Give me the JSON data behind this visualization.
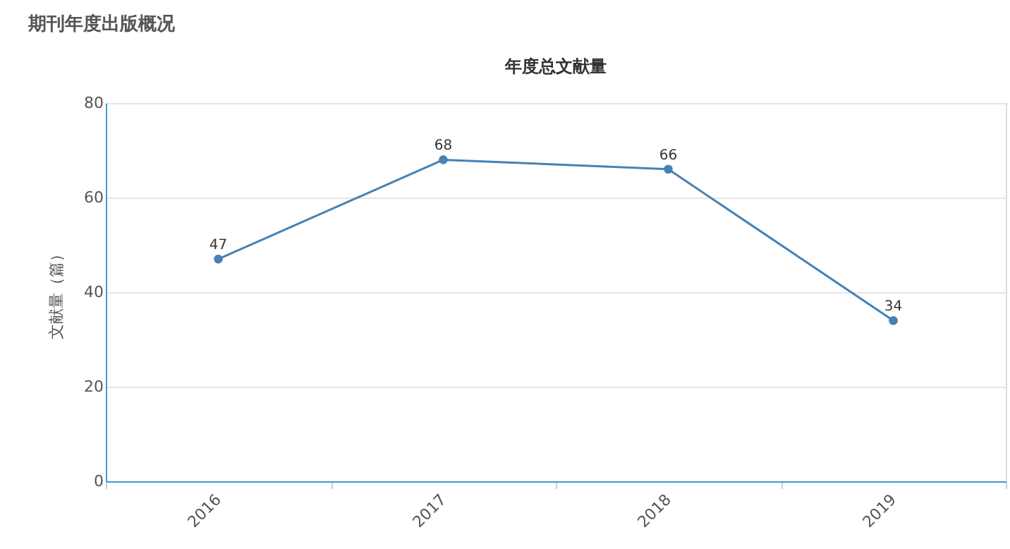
{
  "chart_data": {
    "type": "line",
    "title": "年度总文献量",
    "ylabel": "文献量（篇）",
    "annotations": [
      "期刊年度出版概况"
    ],
    "categories": [
      "2016",
      "2017",
      "2018",
      "2019"
    ],
    "series": [
      {
        "color": "#4682b4",
        "values": [
          47,
          68,
          66,
          34
        ]
      }
    ],
    "ylim": [
      0,
      80
    ],
    "yticks": [
      0,
      20,
      40,
      60,
      80
    ],
    "grid": "y",
    "marker": "circle",
    "line_style": "solid",
    "data_labels": true
  }
}
